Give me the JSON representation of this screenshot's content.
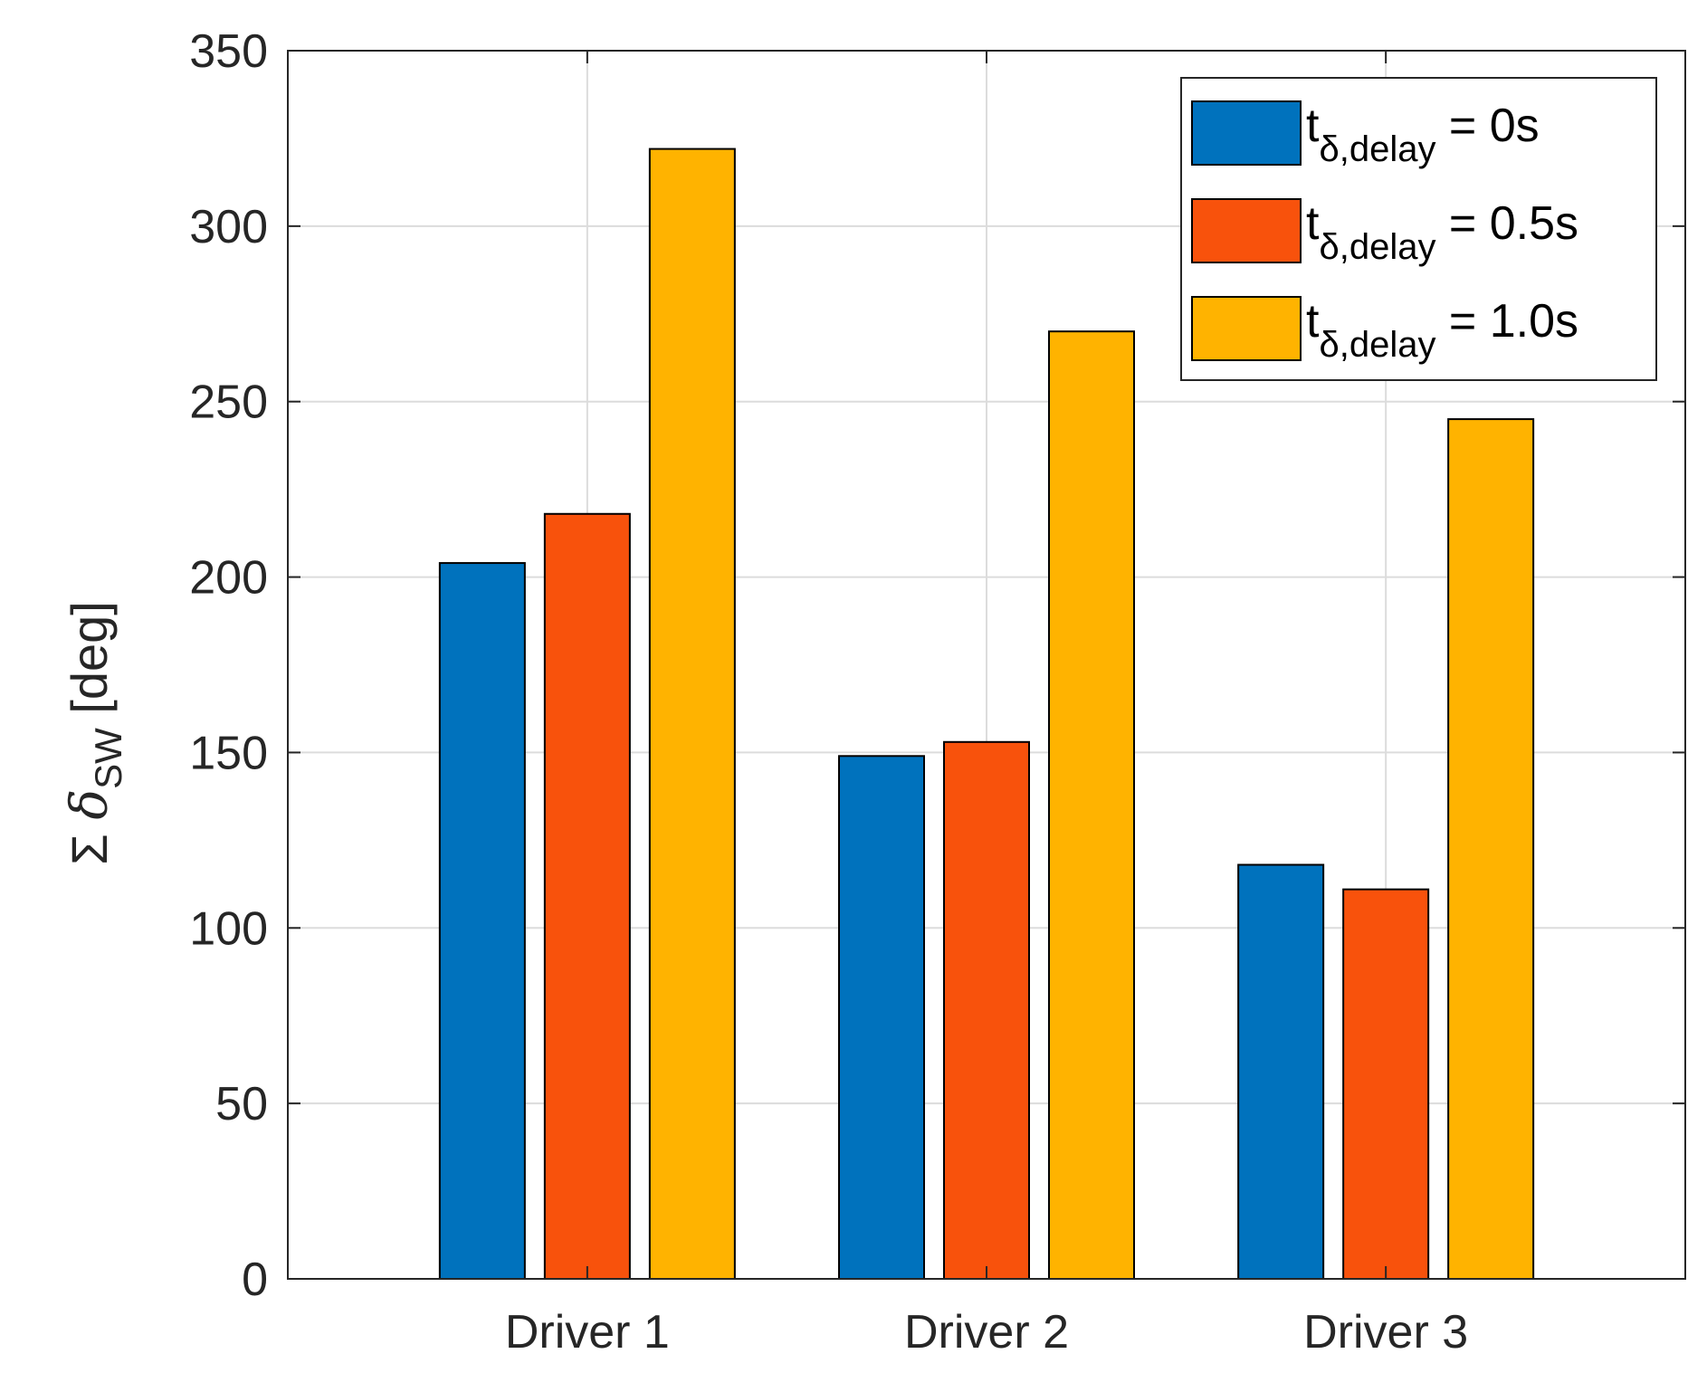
{
  "chart_data": {
    "type": "bar",
    "categories": [
      "Driver 1",
      "Driver 2",
      "Driver 3"
    ],
    "series": [
      {
        "name": "t_{δ,delay} = 0s",
        "base": "t",
        "sub": "δ,delay",
        "suffix": " = 0s",
        "color": "#0072BD",
        "values": [
          204,
          149,
          118
        ]
      },
      {
        "name": "t_{δ,delay} = 0.5s",
        "base": "t",
        "sub": "δ,delay",
        "suffix": " = 0.5s",
        "color": "#F8520C",
        "values": [
          218,
          153,
          111
        ]
      },
      {
        "name": "t_{δ,delay} = 1.0s",
        "base": "t",
        "sub": "δ,delay",
        "suffix": " = 1.0s",
        "color": "#FFB300",
        "values": [
          322,
          270,
          245
        ]
      }
    ],
    "title": "",
    "xlabel": "",
    "ylabel": {
      "prefix": "Σ ",
      "symbol": "δ",
      "sub": "SW",
      "suffix": " [deg]"
    },
    "ylim": [
      0,
      350
    ],
    "yticks": [
      0,
      50,
      100,
      150,
      200,
      250,
      300,
      350
    ],
    "grid": true,
    "legend_position": "top-right"
  }
}
